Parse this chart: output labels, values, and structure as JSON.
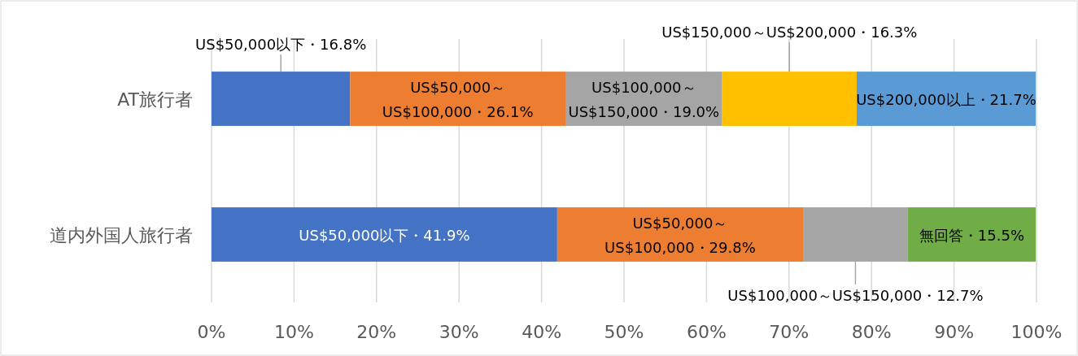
{
  "chart_data": {
    "type": "bar",
    "orientation": "horizontal",
    "stacked": true,
    "categories": [
      "AT旅行者",
      "道内外国人旅行者"
    ],
    "series": [
      {
        "color": "#4472c4",
        "values": [
          16.8,
          41.9
        ],
        "value_labels": [
          "US$50,000以下・16.8%",
          "US$50,000以下・41.9%"
        ]
      },
      {
        "color": "#ed7d31",
        "values": [
          26.1,
          29.8
        ],
        "value_labels": [
          "US$50,000～US$100,000・26.1%",
          "US$50,000～US$100,000・29.8%"
        ]
      },
      {
        "color": "#a5a5a5",
        "values": [
          19.0,
          12.7
        ],
        "value_labels": [
          "US$100,000～US$150,000・19.0%",
          "US$100,000～US$150,000・12.7%"
        ]
      },
      {
        "color": "#ffc000",
        "values": [
          16.3,
          null
        ],
        "value_labels": [
          "US$150,000～US$200,000・16.3%",
          null
        ]
      },
      {
        "color": "#5b9bd5",
        "values": [
          21.7,
          null
        ],
        "value_labels": [
          "US$200,000以上・21.7%",
          null
        ]
      },
      {
        "color": "#70ad47",
        "values": [
          null,
          15.5
        ],
        "value_labels": [
          null,
          "無回答・15.5%"
        ]
      }
    ],
    "xlim": [
      0,
      100
    ],
    "xticks": [
      {
        "value": 0,
        "label": "0%"
      },
      {
        "value": 10,
        "label": "10%"
      },
      {
        "value": 20,
        "label": "20%"
      },
      {
        "value": 30,
        "label": "30%"
      },
      {
        "value": 40,
        "label": "40%"
      },
      {
        "value": 50,
        "label": "50%"
      },
      {
        "value": 60,
        "label": "60%"
      },
      {
        "value": 70,
        "label": "70%"
      },
      {
        "value": 80,
        "label": "80%"
      },
      {
        "value": 90,
        "label": "90%"
      },
      {
        "value": 100,
        "label": "100%"
      }
    ],
    "grid": "x"
  }
}
